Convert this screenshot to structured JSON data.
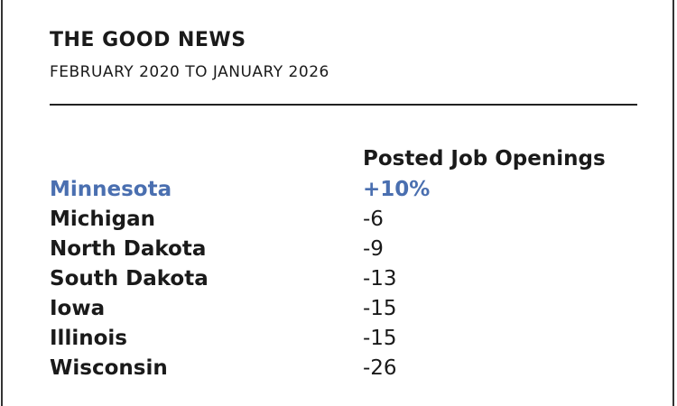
{
  "header": {
    "title": "THE GOOD NEWS",
    "subtitle": "FEBRUARY 2020 TO JANUARY 2026"
  },
  "table": {
    "column_header": "Posted Job Openings",
    "highlight_row": 0,
    "highlight_color": "#4a6fb0",
    "rows": [
      [
        "Minnesota",
        "+10%"
      ],
      [
        "Michigan",
        "-6"
      ],
      [
        "North Dakota",
        "-9"
      ],
      [
        "South Dakota",
        "-13"
      ],
      [
        "Iowa",
        "-15"
      ],
      [
        "Illinois",
        "-15"
      ],
      [
        "Wisconsin",
        "-26"
      ]
    ]
  }
}
